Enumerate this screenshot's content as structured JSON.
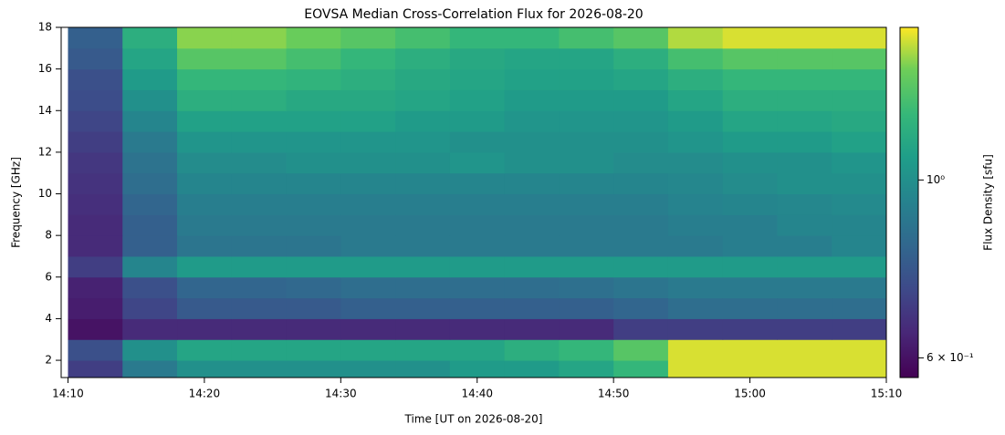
{
  "chart_data": {
    "type": "heatmap",
    "title": "EOVSA Median Cross-Correlation Flux for 2026-08-20",
    "xlabel": "Time [UT on 2026-08-20]",
    "ylabel": "Frequency [GHz]",
    "colorbar_label": "Flux Density [sfu]",
    "colormap": "viridis",
    "color_log_scale": true,
    "xlim": [
      849.5,
      910
    ],
    "xticks": [
      {
        "value": 850,
        "label": "14:10"
      },
      {
        "value": 860,
        "label": "14:20"
      },
      {
        "value": 870,
        "label": "14:30"
      },
      {
        "value": 880,
        "label": "14:40"
      },
      {
        "value": 890,
        "label": "14:50"
      },
      {
        "value": 900,
        "label": "15:00"
      },
      {
        "value": 910,
        "label": "15:10"
      }
    ],
    "ylim": [
      1.17,
      18
    ],
    "yticks": [
      2,
      4,
      6,
      8,
      10,
      12,
      14,
      16,
      18
    ],
    "clim": [
      0.567,
      1.55
    ],
    "cticks": [
      {
        "value": 0.6,
        "label": "6 × 10⁻¹"
      },
      {
        "value": 1,
        "label": "10⁰"
      }
    ],
    "x": [
      852,
      856,
      860,
      864,
      868,
      872,
      876,
      880,
      884,
      888,
      892,
      896,
      900,
      904,
      908
    ],
    "y": [
      1.5,
      2.5,
      3.5,
      4.5,
      5.5,
      6.5,
      7.5,
      8.5,
      9.5,
      10.5,
      11.5,
      12.5,
      13.5,
      14.5,
      15.5,
      16.5,
      17.5
    ],
    "z": [
      [
        0.7,
        0.9,
        1.0,
        1.0,
        1.0,
        1.0,
        1.0,
        1.05,
        1.05,
        1.1,
        1.2,
        1.5,
        1.5,
        1.5,
        1.5
      ],
      [
        0.75,
        1.0,
        1.1,
        1.1,
        1.1,
        1.1,
        1.1,
        1.1,
        1.15,
        1.2,
        1.3,
        1.5,
        1.5,
        1.5,
        1.5
      ],
      [
        0.6,
        0.65,
        0.65,
        0.65,
        0.65,
        0.65,
        0.65,
        0.65,
        0.65,
        0.65,
        0.7,
        0.7,
        0.7,
        0.7,
        0.7
      ],
      [
        0.62,
        0.72,
        0.78,
        0.78,
        0.78,
        0.8,
        0.8,
        0.8,
        0.8,
        0.8,
        0.82,
        0.85,
        0.85,
        0.85,
        0.85
      ],
      [
        0.63,
        0.75,
        0.82,
        0.82,
        0.83,
        0.85,
        0.85,
        0.85,
        0.85,
        0.86,
        0.88,
        0.9,
        0.9,
        0.9,
        0.9
      ],
      [
        0.7,
        0.95,
        1.05,
        1.05,
        1.05,
        1.05,
        1.05,
        1.05,
        1.05,
        1.05,
        1.05,
        1.05,
        1.05,
        1.05,
        1.05
      ],
      [
        0.65,
        0.8,
        0.88,
        0.88,
        0.88,
        0.9,
        0.9,
        0.9,
        0.9,
        0.9,
        0.9,
        0.9,
        0.92,
        0.92,
        0.95
      ],
      [
        0.65,
        0.8,
        0.9,
        0.9,
        0.9,
        0.9,
        0.9,
        0.9,
        0.9,
        0.9,
        0.9,
        0.92,
        0.92,
        0.95,
        0.95
      ],
      [
        0.66,
        0.82,
        0.92,
        0.92,
        0.92,
        0.92,
        0.92,
        0.92,
        0.92,
        0.92,
        0.92,
        0.94,
        0.95,
        0.96,
        0.97
      ],
      [
        0.67,
        0.85,
        0.95,
        0.95,
        0.95,
        0.95,
        0.95,
        0.95,
        0.95,
        0.95,
        0.95,
        0.96,
        0.98,
        1.0,
        1.0
      ],
      [
        0.68,
        0.87,
        0.98,
        0.98,
        1.0,
        1.0,
        1.0,
        1.02,
        1.0,
        1.0,
        0.98,
        0.98,
        1.0,
        1.0,
        1.02
      ],
      [
        0.7,
        0.9,
        1.02,
        1.02,
        1.02,
        1.02,
        1.02,
        1.0,
        1.0,
        1.0,
        1.0,
        1.02,
        1.05,
        1.05,
        1.08
      ],
      [
        0.72,
        0.95,
        1.08,
        1.08,
        1.08,
        1.08,
        1.05,
        1.05,
        1.02,
        1.02,
        1.02,
        1.05,
        1.1,
        1.1,
        1.12
      ],
      [
        0.74,
        1.0,
        1.15,
        1.15,
        1.12,
        1.12,
        1.1,
        1.08,
        1.05,
        1.05,
        1.05,
        1.1,
        1.15,
        1.15,
        1.15
      ],
      [
        0.75,
        1.05,
        1.2,
        1.2,
        1.18,
        1.15,
        1.12,
        1.1,
        1.08,
        1.08,
        1.1,
        1.15,
        1.2,
        1.2,
        1.2
      ],
      [
        0.78,
        1.1,
        1.3,
        1.3,
        1.25,
        1.2,
        1.15,
        1.12,
        1.1,
        1.1,
        1.15,
        1.25,
        1.3,
        1.3,
        1.3
      ],
      [
        0.8,
        1.15,
        1.4,
        1.4,
        1.35,
        1.3,
        1.25,
        1.2,
        1.2,
        1.25,
        1.3,
        1.45,
        1.5,
        1.5,
        1.5
      ]
    ]
  }
}
